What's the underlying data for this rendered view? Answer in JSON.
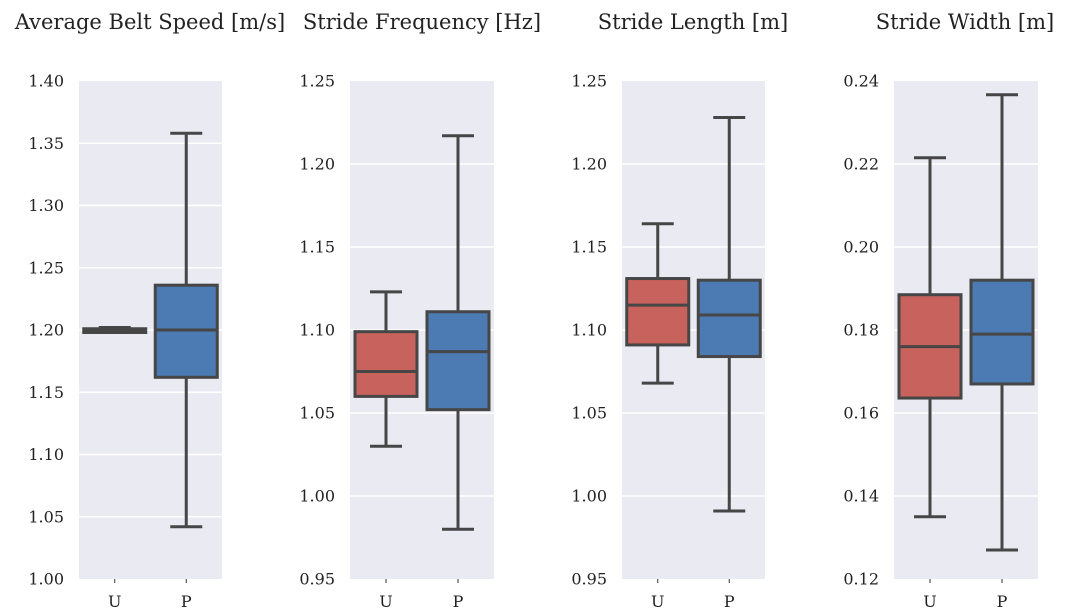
{
  "chart_data": [
    {
      "type": "box",
      "title": "Average Belt Speed [m/s]",
      "categories": [
        "U",
        "P"
      ],
      "ylim": [
        1.0,
        1.4
      ],
      "yticks": [
        "1.00",
        "1.05",
        "1.10",
        "1.15",
        "1.20",
        "1.25",
        "1.30",
        "1.35",
        "1.40"
      ],
      "boxes": [
        {
          "name": "U",
          "min": 1.198,
          "q1": 1.198,
          "median": 1.2,
          "q3": 1.201,
          "max": 1.202,
          "color": "#c8625d"
        },
        {
          "name": "P",
          "min": 1.042,
          "q1": 1.162,
          "median": 1.2,
          "q3": 1.236,
          "max": 1.358,
          "color": "#4c7ab3"
        }
      ],
      "grid": true
    },
    {
      "type": "box",
      "title": "Stride Frequency [Hz]",
      "categories": [
        "U",
        "P"
      ],
      "ylim": [
        0.95,
        1.25
      ],
      "yticks": [
        "0.95",
        "1.00",
        "1.05",
        "1.10",
        "1.15",
        "1.20",
        "1.25"
      ],
      "boxes": [
        {
          "name": "U",
          "min": 1.03,
          "q1": 1.06,
          "median": 1.075,
          "q3": 1.099,
          "max": 1.123,
          "color": "#c8625d"
        },
        {
          "name": "P",
          "min": 0.98,
          "q1": 1.052,
          "median": 1.087,
          "q3": 1.111,
          "max": 1.217,
          "color": "#4c7ab3"
        }
      ],
      "grid": true
    },
    {
      "type": "box",
      "title": "Stride Length [m]",
      "categories": [
        "U",
        "P"
      ],
      "ylim": [
        0.95,
        1.25
      ],
      "yticks": [
        "0.95",
        "1.00",
        "1.05",
        "1.10",
        "1.15",
        "1.20",
        "1.25"
      ],
      "boxes": [
        {
          "name": "U",
          "min": 1.068,
          "q1": 1.091,
          "median": 1.115,
          "q3": 1.131,
          "max": 1.164,
          "color": "#c8625d"
        },
        {
          "name": "P",
          "min": 0.991,
          "q1": 1.084,
          "median": 1.109,
          "q3": 1.13,
          "max": 1.228,
          "color": "#4c7ab3"
        }
      ],
      "grid": true
    },
    {
      "type": "box",
      "title": "Stride Width [m]",
      "categories": [
        "U",
        "P"
      ],
      "ylim": [
        0.12,
        0.24
      ],
      "yticks": [
        "0.12",
        "0.14",
        "0.16",
        "0.18",
        "0.20",
        "0.22",
        "0.24"
      ],
      "boxes": [
        {
          "name": "U",
          "min": 0.135,
          "q1": 0.1636,
          "median": 0.176,
          "q3": 0.1885,
          "max": 0.2215,
          "color": "#c8625d"
        },
        {
          "name": "P",
          "min": 0.127,
          "q1": 0.167,
          "median": 0.179,
          "q3": 0.192,
          "max": 0.2367,
          "color": "#4c7ab3"
        }
      ],
      "grid": true
    }
  ],
  "style": {
    "plot_background": "#eaeaf2",
    "grid_color": "#ffffff",
    "line_color": "#464646",
    "text_color": "#222222"
  }
}
